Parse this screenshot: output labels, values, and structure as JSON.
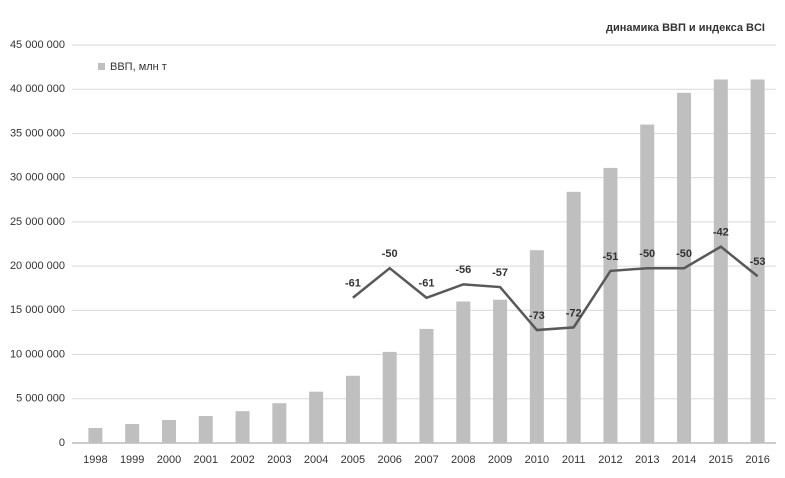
{
  "chart_data": {
    "type": "bar",
    "title": "динамика ВВП и индекса BCI",
    "categories": [
      "1998",
      "1999",
      "2000",
      "2001",
      "2002",
      "2003",
      "2004",
      "2005",
      "2006",
      "2007",
      "2008",
      "2009",
      "2010",
      "2011",
      "2012",
      "2013",
      "2014",
      "2015",
      "2016"
    ],
    "series": [
      {
        "name": "ВВП, млн т",
        "color": "#bfbfbf",
        "type": "bar",
        "values": [
          1700000,
          2150000,
          2600000,
          3050000,
          3600000,
          4500000,
          5800000,
          7600000,
          10300000,
          12900000,
          16000000,
          16200000,
          21800000,
          28400000,
          31100000,
          36000000,
          39600000,
          41100000,
          41100000
        ]
      },
      {
        "name": null,
        "color": "#595959",
        "type": "line",
        "axis": "y2",
        "values": [
          null,
          null,
          null,
          null,
          null,
          null,
          null,
          -61,
          -50,
          -61,
          -56,
          -57,
          -73,
          -72,
          -51,
          -50,
          -50,
          -42,
          -53
        ]
      }
    ],
    "ylim": [
      0,
      45000000
    ],
    "yticks": [
      0,
      {
        "value": 5000000,
        "label": "5 000 000"
      },
      {
        "value": 10000000,
        "label": "10 000 000"
      },
      {
        "value": 15000000,
        "label": "15 000 000"
      },
      {
        "value": 20000000,
        "label": "20 000 000"
      },
      {
        "value": 25000000,
        "label": "25 000 000"
      },
      {
        "value": 30000000,
        "label": "30 000 000"
      },
      {
        "value": 35000000,
        "label": "35 000 000"
      },
      {
        "value": 40000000,
        "label": "40 000 000"
      },
      {
        "value": 45000000,
        "label": "45 000 000"
      }
    ],
    "y2lim": [
      -115,
      33
    ],
    "grid": true,
    "legend": "top-left"
  }
}
